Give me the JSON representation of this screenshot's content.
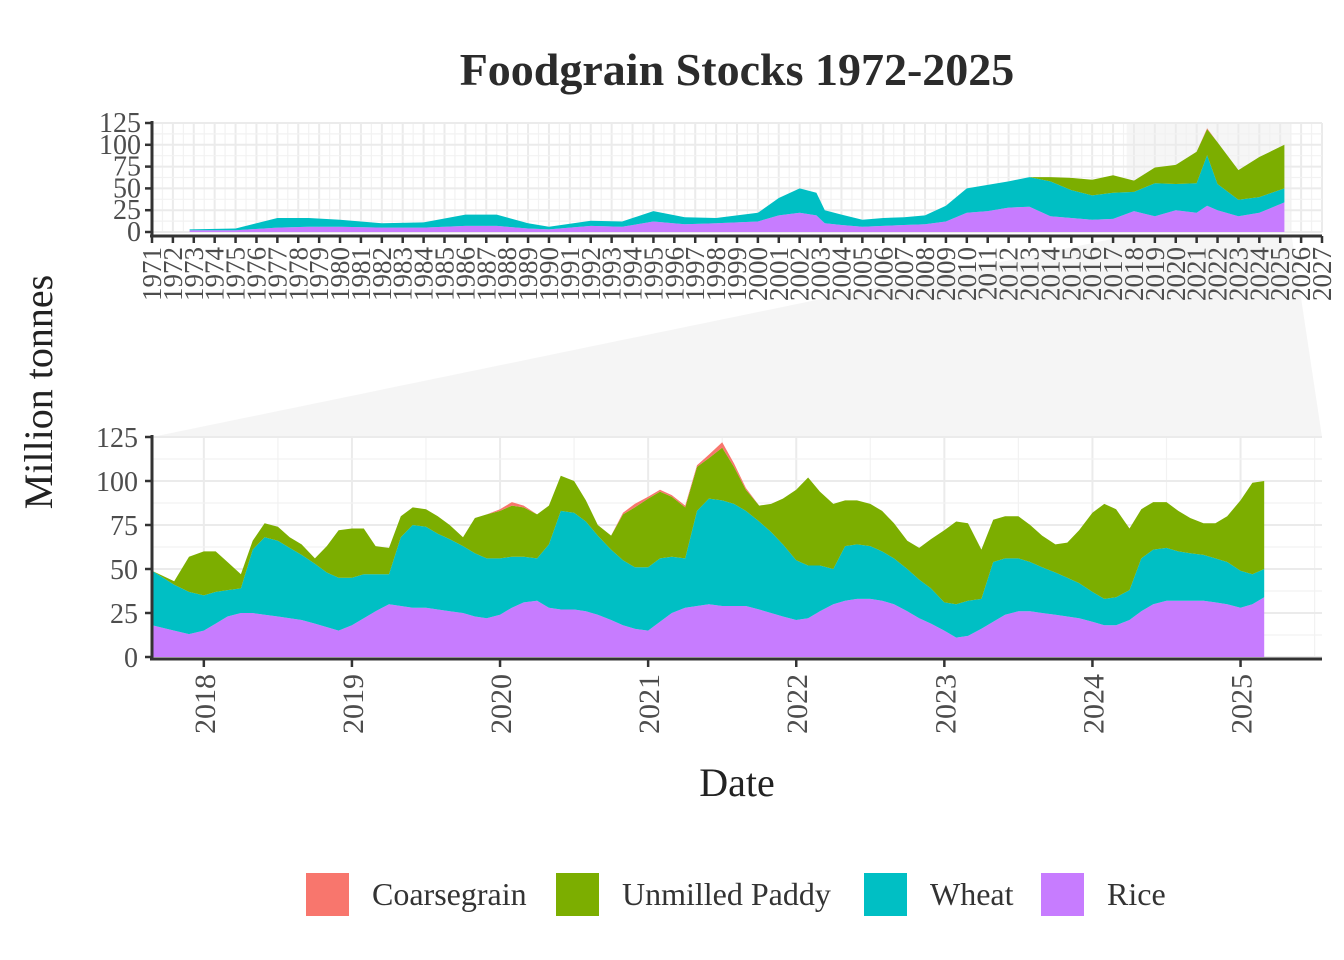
{
  "chart_data": {
    "type": "area",
    "stacked": true,
    "title": "Foodgrain Stocks 1972-2025",
    "xlabel": "Date",
    "ylabel": "Million tonnes",
    "legend_position": "bottom",
    "grid": true,
    "series_order_bottom_to_top": [
      "Rice",
      "Wheat",
      "Unmilled Paddy",
      "Coarsegrain"
    ],
    "legend": [
      {
        "name": "Coarsegrain",
        "color": "#F8766D"
      },
      {
        "name": "Unmilled Paddy",
        "color": "#7CAE00"
      },
      {
        "name": "Wheat",
        "color": "#00BFC4"
      },
      {
        "name": "Rice",
        "color": "#C77CFF"
      }
    ],
    "overview_panel": {
      "xlim": [
        1971,
        2027
      ],
      "ylim": [
        0,
        125
      ],
      "yticks": [
        0,
        25,
        50,
        75,
        100,
        125
      ],
      "xticks": [
        "1971",
        "1972",
        "1973",
        "1974",
        "1975",
        "1976",
        "1977",
        "1978",
        "1979",
        "1980",
        "1981",
        "1982",
        "1983",
        "1984",
        "1985",
        "1986",
        "1987",
        "1988",
        "1989",
        "1990",
        "1991",
        "1992",
        "1993",
        "1994",
        "1995",
        "1996",
        "1997",
        "1998",
        "1999",
        "2000",
        "2001",
        "2002",
        "2003",
        "2004",
        "2005",
        "2006",
        "2007",
        "2008",
        "2009",
        "2010",
        "2011",
        "2012",
        "2013",
        "2014",
        "2015",
        "2016",
        "2017",
        "2018",
        "2019",
        "2020",
        "2021",
        "2022",
        "2023",
        "2024",
        "2025",
        "2026",
        "2027"
      ],
      "approx_series": {
        "x": [
          1972.8,
          1975.0,
          1977.0,
          1978.5,
          1980.0,
          1982.0,
          1984.0,
          1986.0,
          1987.5,
          1989.0,
          1990.0,
          1992.0,
          1993.5,
          1995.0,
          1996.5,
          1998.0,
          2000.0,
          2001.0,
          2002.0,
          2002.8,
          2003.2,
          2004.0,
          2005.0,
          2006.0,
          2007.0,
          2008.0,
          2009.0,
          2010.0,
          2011.0,
          2012.0,
          2013.0,
          2014.0,
          2015.0,
          2016.0,
          2017.0,
          2018.0,
          2019.0,
          2020.0,
          2021.0,
          2021.5,
          2022.0,
          2023.0,
          2024.0,
          2025.2
        ],
        "rice": [
          2,
          2,
          5,
          6,
          6,
          5,
          5,
          7,
          7,
          4,
          3,
          7,
          6,
          12,
          9,
          10,
          12,
          19,
          22,
          19,
          10,
          8,
          6,
          7,
          8,
          9,
          12,
          22,
          24,
          28,
          29,
          18,
          16,
          14,
          15,
          24,
          18,
          25,
          22,
          30,
          25,
          18,
          22,
          34
        ],
        "wheat": [
          1,
          2,
          11,
          10,
          8,
          5,
          6,
          13,
          13,
          6,
          3,
          6,
          6,
          12,
          8,
          6,
          10,
          20,
          28,
          26,
          15,
          12,
          8,
          9,
          9,
          10,
          18,
          28,
          30,
          30,
          34,
          40,
          32,
          28,
          30,
          22,
          38,
          30,
          34,
          58,
          30,
          19,
          18,
          16
        ],
        "unmilled_paddy": [
          0,
          0,
          0,
          0,
          0,
          0,
          0,
          0,
          0,
          0,
          0,
          0,
          0,
          0,
          0,
          0,
          0,
          0,
          0,
          0,
          0,
          0,
          0,
          0,
          0,
          0,
          0,
          0,
          0,
          0,
          0,
          5,
          14,
          18,
          20,
          13,
          18,
          22,
          36,
          30,
          48,
          34,
          46,
          50
        ],
        "coarsegrain": [
          0,
          0,
          0,
          0,
          0,
          0,
          0,
          0,
          0,
          0,
          0,
          0,
          0,
          0,
          0,
          0,
          0,
          0,
          0,
          0,
          0,
          0,
          0,
          0,
          0,
          0,
          0,
          0,
          0,
          0,
          0,
          0,
          0,
          0,
          0,
          0,
          0,
          0,
          0,
          1,
          0,
          0,
          0,
          0
        ]
      }
    },
    "detail_panel": {
      "xlim": [
        2017.65,
        2025.55
      ],
      "ylim": [
        0,
        125
      ],
      "yticks": [
        0,
        25,
        50,
        75,
        100,
        125
      ],
      "xticks": [
        "2018",
        "2019",
        "2020",
        "2021",
        "2022",
        "2023",
        "2024",
        "2025"
      ],
      "x": [
        2017.65,
        2017.8,
        2017.9,
        2018.0,
        2018.08,
        2018.16,
        2018.25,
        2018.33,
        2018.41,
        2018.5,
        2018.58,
        2018.66,
        2018.75,
        2018.83,
        2018.91,
        2019.0,
        2019.08,
        2019.16,
        2019.25,
        2019.33,
        2019.41,
        2019.5,
        2019.58,
        2019.66,
        2019.75,
        2019.83,
        2019.91,
        2020.0,
        2020.08,
        2020.16,
        2020.25,
        2020.33,
        2020.41,
        2020.5,
        2020.58,
        2020.66,
        2020.75,
        2020.83,
        2020.91,
        2021.0,
        2021.08,
        2021.16,
        2021.25,
        2021.33,
        2021.41,
        2021.5,
        2021.58,
        2021.66,
        2021.75,
        2021.83,
        2021.91,
        2022.0,
        2022.08,
        2022.16,
        2022.25,
        2022.33,
        2022.41,
        2022.5,
        2022.58,
        2022.66,
        2022.75,
        2022.83,
        2022.91,
        2023.0,
        2023.08,
        2023.16,
        2023.25,
        2023.33,
        2023.41,
        2023.5,
        2023.58,
        2023.66,
        2023.75,
        2023.83,
        2023.91,
        2024.0,
        2024.08,
        2024.16,
        2024.25,
        2024.33,
        2024.41,
        2024.5,
        2024.58,
        2024.66,
        2024.75,
        2024.83,
        2024.91,
        2025.0,
        2025.08,
        2025.16
      ],
      "series": [
        {
          "name": "Rice",
          "color": "#C77CFF",
          "values": [
            18,
            15,
            13,
            15,
            19,
            23,
            25,
            25,
            24,
            23,
            22,
            21,
            19,
            17,
            15,
            18,
            22,
            26,
            30,
            29,
            28,
            28,
            27,
            26,
            25,
            23,
            22,
            24,
            28,
            31,
            32,
            28,
            27,
            27,
            26,
            24,
            21,
            18,
            16,
            15,
            20,
            25,
            28,
            29,
            30,
            29,
            29,
            29,
            27,
            25,
            23,
            21,
            22,
            26,
            30,
            32,
            33,
            33,
            32,
            30,
            26,
            22,
            19,
            15,
            11,
            12,
            16,
            20,
            24,
            26,
            26,
            25,
            24,
            23,
            22,
            20,
            18,
            18,
            21,
            26,
            30,
            32,
            32,
            32,
            32,
            31,
            30,
            28,
            30,
            34
          ]
        },
        {
          "name": "Wheat",
          "color": "#00BFC4",
          "values": [
            31,
            26,
            24,
            20,
            18,
            15,
            14,
            36,
            44,
            43,
            40,
            37,
            34,
            31,
            30,
            27,
            25,
            21,
            17,
            39,
            47,
            46,
            43,
            41,
            38,
            36,
            34,
            32,
            29,
            26,
            24,
            36,
            56,
            55,
            51,
            45,
            40,
            37,
            35,
            36,
            36,
            32,
            28,
            54,
            60,
            60,
            58,
            54,
            50,
            46,
            41,
            34,
            30,
            26,
            20,
            31,
            31,
            30,
            28,
            26,
            24,
            22,
            20,
            16,
            19,
            20,
            17,
            34,
            32,
            30,
            28,
            26,
            24,
            22,
            20,
            17,
            15,
            16,
            17,
            30,
            31,
            30,
            28,
            27,
            26,
            25,
            24,
            21,
            17,
            16
          ]
        },
        {
          "name": "Unmilled Paddy",
          "color": "#7CAE00",
          "values": [
            0,
            2,
            20,
            25,
            23,
            16,
            8,
            5,
            8,
            8,
            6,
            6,
            3,
            15,
            27,
            28,
            26,
            16,
            15,
            12,
            10,
            10,
            10,
            8,
            5,
            20,
            25,
            27,
            29,
            28,
            25,
            22,
            20,
            18,
            12,
            6,
            8,
            26,
            34,
            39,
            38,
            34,
            29,
            25,
            23,
            30,
            21,
            12,
            9,
            16,
            26,
            40,
            50,
            42,
            37,
            26,
            25,
            24,
            23,
            20,
            16,
            18,
            28,
            41,
            47,
            44,
            28,
            24,
            24,
            24,
            21,
            18,
            16,
            20,
            30,
            45,
            54,
            50,
            35,
            28,
            27,
            26,
            23,
            20,
            18,
            20,
            26,
            40,
            52,
            50
          ]
        },
        {
          "name": "Coarsegrain",
          "color": "#F8766D",
          "values": [
            0,
            0,
            0,
            0,
            0,
            0,
            0,
            0,
            0,
            0,
            0,
            0,
            0,
            0,
            0,
            0,
            0,
            0,
            0,
            0,
            0,
            0,
            0,
            0,
            0,
            0,
            0,
            1,
            2,
            1,
            0,
            0,
            0,
            0,
            0,
            0,
            0,
            1,
            2,
            1,
            1,
            1,
            1,
            1,
            2,
            3,
            2,
            1,
            0,
            0,
            0,
            0,
            0,
            0,
            0,
            0,
            0,
            0,
            0,
            0,
            0,
            0,
            0,
            0,
            0,
            0,
            0,
            0,
            0,
            0,
            0,
            0,
            0,
            0,
            0,
            0,
            0,
            0,
            0,
            0,
            0,
            0,
            0,
            0,
            0,
            0,
            0,
            0,
            0,
            0
          ]
        }
      ]
    }
  }
}
